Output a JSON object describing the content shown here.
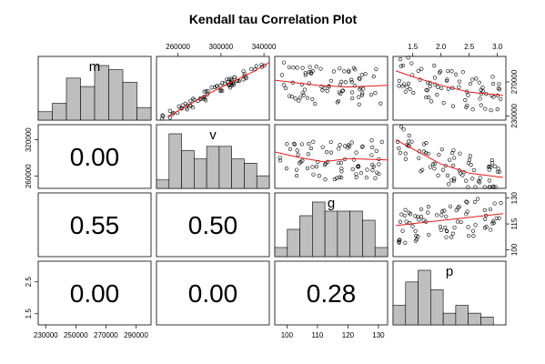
{
  "chart_data": {
    "type": "pairs",
    "title": "Kendall tau Correlation Plot",
    "variables": [
      {
        "name": "m",
        "range": [
          225000,
          300000
        ],
        "ticks": [
          230000,
          250000,
          270000,
          290000
        ],
        "tick_labels": [
          "230000",
          "250000",
          "270000",
          "290000"
        ]
      },
      {
        "name": "v",
        "range": [
          240000,
          345000
        ],
        "ticks": [
          260000,
          300000,
          340000
        ],
        "tick_labels": [
          "260000",
          "300000",
          "340000"
        ]
      },
      {
        "name": "g",
        "range": [
          96,
          133
        ],
        "ticks": [
          100,
          110,
          120,
          130
        ],
        "tick_labels": [
          "100",
          "110",
          "120",
          "130"
        ]
      },
      {
        "name": "p",
        "range": [
          1.15,
          3.15
        ],
        "ticks": [
          1.5,
          2.0,
          2.5,
          3.0
        ],
        "tick_labels": [
          "1.5",
          "2.0",
          "2.5",
          "3.0"
        ]
      }
    ],
    "scatter_y_ticks": [
      {
        "ticks": [
          230000,
          270000
        ],
        "tick_labels": [
          "230000",
          "270000"
        ]
      },
      {
        "ticks": [
          260000,
          320000
        ],
        "tick_labels": [
          "260000",
          "320000"
        ]
      },
      {
        "ticks": [
          100,
          115,
          130
        ],
        "tick_labels": [
          "100",
          "115",
          "130"
        ]
      },
      {
        "ticks": [
          1.5,
          2.5
        ],
        "tick_labels": [
          "1.5",
          "2.5"
        ]
      }
    ],
    "correlations": [
      {
        "row": 1,
        "col": 0,
        "value": "0.00"
      },
      {
        "row": 2,
        "col": 0,
        "value": "0.55"
      },
      {
        "row": 2,
        "col": 1,
        "value": "0.50"
      },
      {
        "row": 3,
        "col": 0,
        "value": "0.00"
      },
      {
        "row": 3,
        "col": 1,
        "value": "0.00"
      },
      {
        "row": 3,
        "col": 2,
        "value": "0.28"
      }
    ],
    "histograms": [
      {
        "var": "m",
        "counts": [
          2,
          4,
          10,
          8,
          13,
          12,
          9,
          3
        ]
      },
      {
        "var": "v",
        "counts": [
          2,
          13,
          9,
          7,
          10,
          10,
          7,
          6,
          3
        ]
      },
      {
        "var": "g",
        "counts": [
          2,
          6,
          9,
          12,
          10,
          10,
          10,
          8,
          2
        ]
      },
      {
        "var": "p",
        "counts": [
          5,
          11,
          14,
          9,
          3,
          5,
          3,
          2,
          0
        ]
      }
    ],
    "scatter_panels": [
      {
        "row": 0,
        "col": 1,
        "fit": [
          [
            250000,
            229000
          ],
          [
            270000,
            243000
          ],
          [
            290000,
            257000
          ],
          [
            310000,
            270000
          ],
          [
            330000,
            282000
          ],
          [
            345000,
            293000
          ]
        ]
      },
      {
        "row": 0,
        "col": 2,
        "fit": [
          [
            96,
            272000
          ],
          [
            110,
            266000
          ],
          [
            120,
            264000
          ],
          [
            133,
            266000
          ]
        ]
      },
      {
        "row": 0,
        "col": 3,
        "fit": [
          [
            1.2,
            283000
          ],
          [
            1.5,
            276000
          ],
          [
            2.0,
            266000
          ],
          [
            2.5,
            258000
          ],
          [
            3.1,
            254000
          ]
        ]
      },
      {
        "row": 1,
        "col": 2,
        "fit": [
          [
            96,
            300000
          ],
          [
            105,
            290000
          ],
          [
            112,
            284000
          ],
          [
            120,
            289000
          ],
          [
            133,
            287000
          ]
        ]
      },
      {
        "row": 1,
        "col": 3,
        "fit": [
          [
            1.2,
            320000
          ],
          [
            1.5,
            305000
          ],
          [
            2.0,
            280000
          ],
          [
            2.5,
            265000
          ],
          [
            3.1,
            258000
          ]
        ]
      },
      {
        "row": 2,
        "col": 3,
        "fit": [
          [
            1.2,
            114
          ],
          [
            2.0,
            117
          ],
          [
            3.1,
            121
          ]
        ]
      }
    ]
  }
}
